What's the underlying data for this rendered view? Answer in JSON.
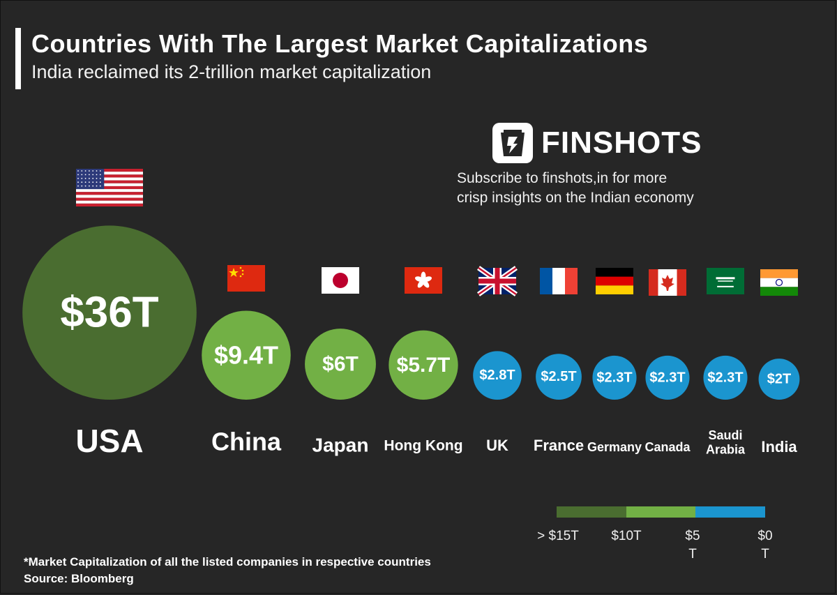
{
  "header": {
    "title": "Countries With The Largest Market Capitalizations",
    "subtitle": "India reclaimed its 2-trillion market capitalization"
  },
  "brand": {
    "name": "FINSHOTS",
    "promo": "Subscribe to finshots,in for more\ncrisp insights on the Indian economy"
  },
  "chart_data": {
    "type": "bubble",
    "unit": "trillion USD",
    "categories": [
      "USA",
      "China",
      "Japan",
      "Hong Kong",
      "UK",
      "France",
      "Germany",
      "Canada",
      "Saudi Arabia",
      "India"
    ],
    "display_labels": [
      "USA",
      "China",
      "Japan",
      "Hong Kong",
      "UK",
      "France",
      "Germany",
      "Canada",
      "Saudi\nArabia",
      "India"
    ],
    "values": [
      36,
      9.4,
      6,
      5.7,
      2.8,
      2.5,
      2.3,
      2.3,
      2.3,
      2
    ],
    "value_labels": [
      "$36T",
      "$9.4T",
      "$6T",
      "$5.7T",
      "$2.8T",
      "$2.5T",
      "$2.3T",
      "$2.3T",
      "$2.3T",
      "$2T"
    ],
    "flags": [
      "us-flag",
      "china-flag",
      "japan-flag",
      "hong-kong-flag",
      "uk-flag",
      "france-flag",
      "germany-flag",
      "canada-flag",
      "saudi-arabia-flag",
      "india-flag"
    ],
    "color_scale": {
      "bins": [
        {
          "label": "> $15T",
          "color": "#4a6d30"
        },
        {
          "label": "$10T",
          "color": "#72b045"
        },
        {
          "label": "$5\nT",
          "color": "#1b95cf"
        },
        {
          "label": "$0\nT",
          "color": ""
        }
      ]
    }
  },
  "footer": {
    "note": "*Market Capitalization of all the listed companies in respective countries",
    "source": "Source: Bloomberg"
  }
}
